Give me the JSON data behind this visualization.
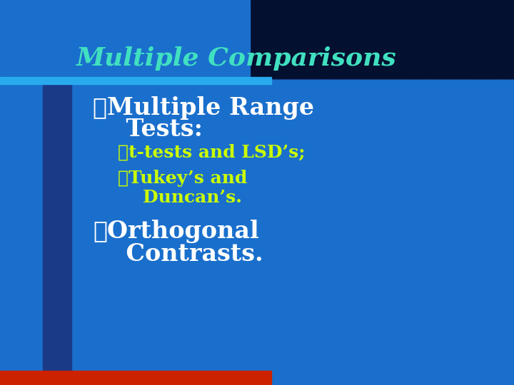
{
  "title": "Multiple Comparisons",
  "title_color": "#40e0c0",
  "title_fontsize": 26,
  "bg_color": "#1a6fcc",
  "header_bg_color": "#041030",
  "header_stripe_color": "#29aaee",
  "left_bar_color": "#1a3a88",
  "bottom_bar_color": "#cc2200",
  "bullet1_line1": "❖Multiple Range",
  "bullet1_line2": "    Tests:",
  "bullet1_color": "#ffffff",
  "bullet1_fontsize": 24,
  "sub1_text": "➤t-tests and LSD’s;",
  "sub1_color": "#ccff00",
  "sub1_fontsize": 18,
  "sub2_line1": "➤Tukey’s and",
  "sub2_line2": "    Duncan’s.",
  "sub2_color": "#ccff00",
  "sub2_fontsize": 18,
  "bullet2_line1": "❖Orthogonal",
  "bullet2_line2": "    Contrasts.",
  "bullet2_color": "#ffffff",
  "bullet2_fontsize": 24
}
